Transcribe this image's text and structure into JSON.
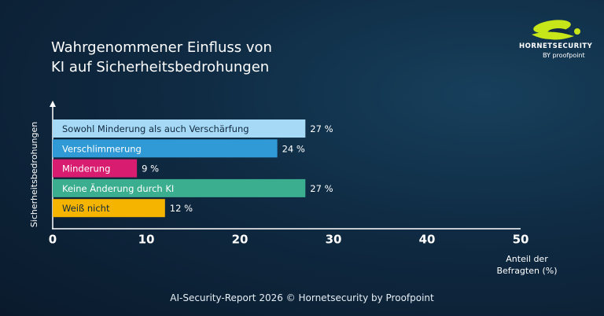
{
  "chart_data": {
    "type": "bar",
    "orientation": "horizontal",
    "title": "Wahrgenommener Einfluss von KI auf Sicherheitsbedrohungen",
    "y_label": "Sicherheitsbedrohungen",
    "x_label": "Anteil der Befragten (%)",
    "categories": [
      "Sowohl Minderung als auch Verschärfung",
      "Verschlimmerung",
      "Minderung",
      "Keine Änderung durch KI",
      "Weiß nicht"
    ],
    "values": [
      27,
      24,
      9,
      27,
      12
    ],
    "value_labels": [
      "27 %",
      "24 %",
      "9 %",
      "27 %",
      "12 %"
    ],
    "colors": [
      "#a6d9f5",
      "#2f9ad6",
      "#d81c6f",
      "#3aae8e",
      "#f4b400"
    ],
    "xlim": [
      0,
      50
    ],
    "xticks": [
      0,
      10,
      20,
      30,
      40,
      50
    ]
  },
  "footer": "AI-Security-Report 2026 © Hornetsecurity by Proofpoint",
  "logo": {
    "name": "HORNETSECURITY",
    "by": "BY proofpoint"
  }
}
